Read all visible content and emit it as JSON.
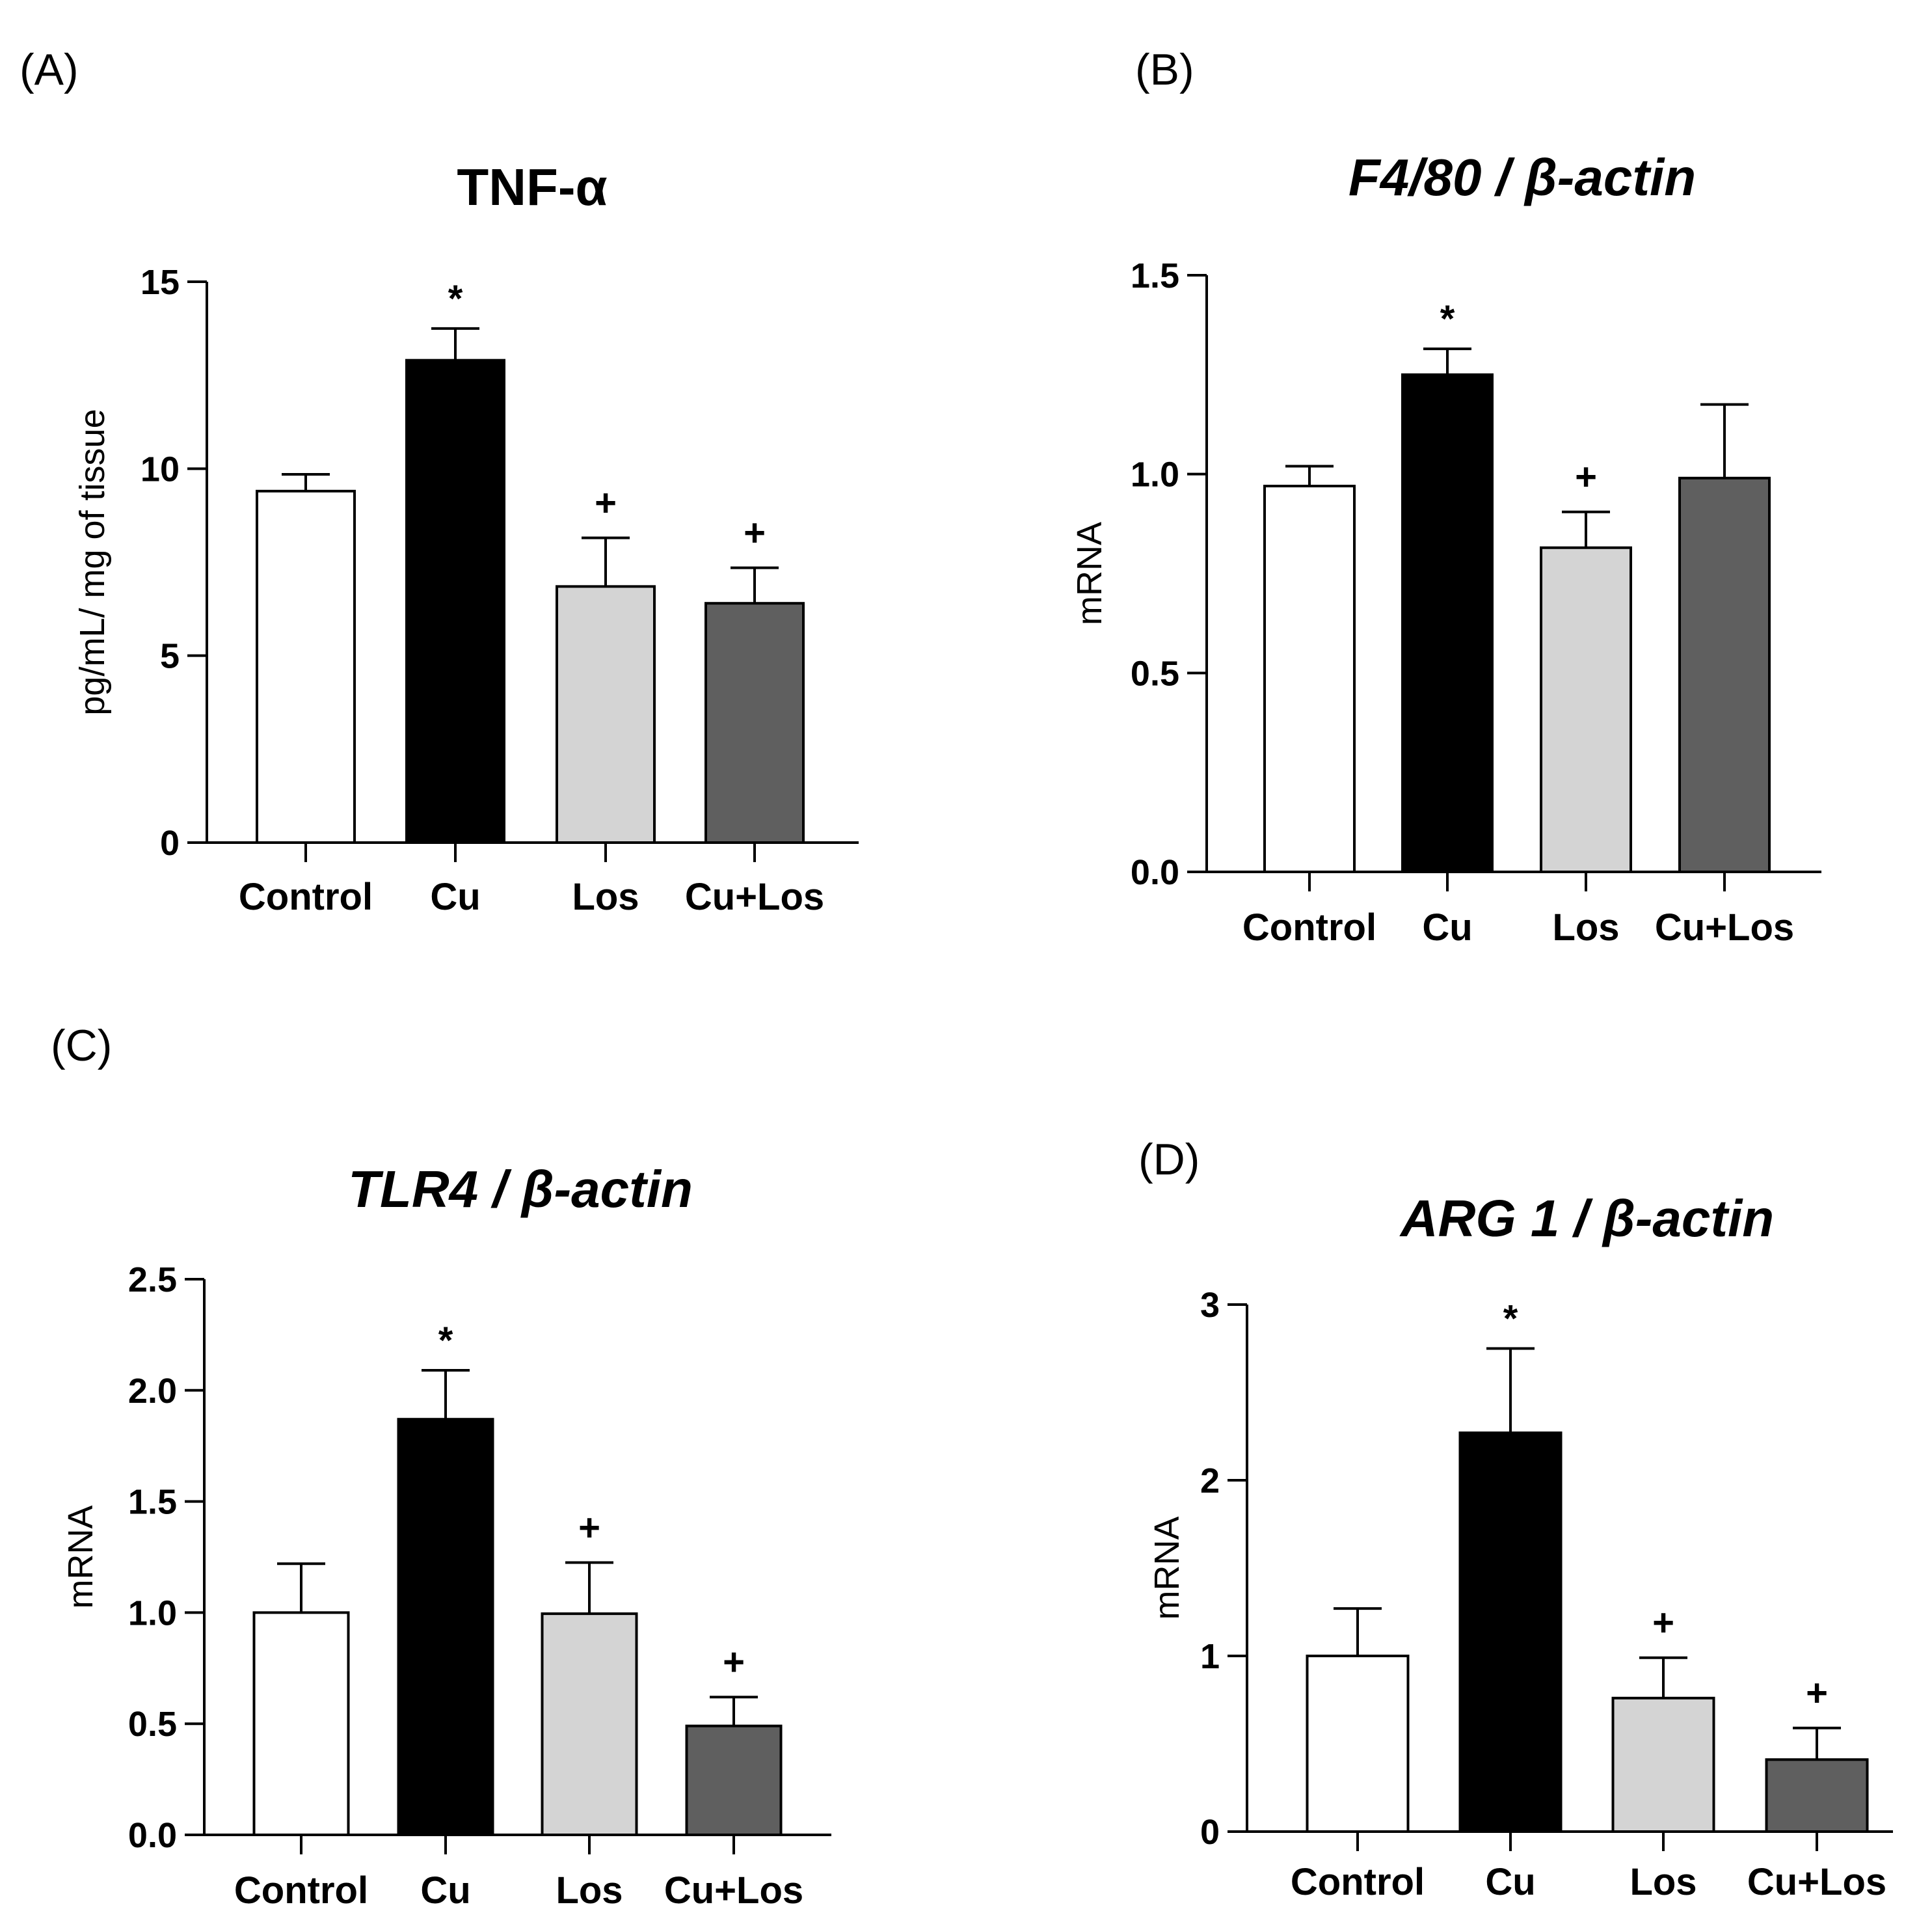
{
  "figure_labels": {
    "a": "(A)",
    "b": "(B)",
    "c": "(C)",
    "d": "(D)"
  },
  "colors": {
    "control": "#ffffff",
    "cu": "#000000",
    "los": "#d4d4d4",
    "culos": "#5f5f5f"
  },
  "chart_data": [
    {
      "id": "A",
      "type": "bar",
      "title": "TNF-α",
      "title_style": "bold",
      "ylabel": "pg/mL/ mg of tissue",
      "xlabel": "",
      "categories": [
        "Control",
        "Cu",
        "Los",
        "Cu+Los"
      ],
      "values": [
        9.4,
        12.9,
        6.85,
        6.4
      ],
      "errors": [
        0.45,
        0.85,
        1.3,
        0.95
      ],
      "annotations": [
        "",
        "*",
        "+",
        "+"
      ],
      "ylim": [
        0,
        15
      ],
      "yticks": [
        0,
        5,
        10,
        15
      ],
      "ytick_labels": [
        "0",
        "5",
        "10",
        "15"
      ]
    },
    {
      "id": "B",
      "type": "bar",
      "title": "F4/80 / β-actin",
      "title_style": "bold-italic",
      "ylabel": "mRNA",
      "xlabel": "",
      "categories": [
        "Control",
        "Cu",
        "Los",
        "Cu+Los"
      ],
      "values": [
        0.97,
        1.25,
        0.815,
        0.99
      ],
      "errors": [
        0.05,
        0.065,
        0.09,
        0.185
      ],
      "annotations": [
        "",
        "*",
        "+",
        ""
      ],
      "ylim": [
        0,
        1.5
      ],
      "yticks": [
        0,
        0.5,
        1.0,
        1.5
      ],
      "ytick_labels": [
        "0.0",
        "0.5",
        "1.0",
        "1.5"
      ]
    },
    {
      "id": "C",
      "type": "bar",
      "title": "TLR4 / β-actin",
      "title_style": "bold-italic",
      "ylabel": "mRNA",
      "xlabel": "",
      "categories": [
        "Control",
        "Cu",
        "Los",
        "Cu+Los"
      ],
      "values": [
        1.0,
        1.87,
        0.995,
        0.49
      ],
      "errors": [
        0.22,
        0.22,
        0.23,
        0.13
      ],
      "annotations": [
        "",
        "*",
        "+",
        "+"
      ],
      "ylim": [
        0,
        2.5
      ],
      "yticks": [
        0,
        0.5,
        1.0,
        1.5,
        2.0,
        2.5
      ],
      "ytick_labels": [
        "0.0",
        "0.5",
        "1.0",
        "1.5",
        "2.0",
        "2.5"
      ]
    },
    {
      "id": "D",
      "type": "bar",
      "title": "ARG 1 / β-actin",
      "title_style": "bold-italic",
      "ylabel": "mRNA",
      "xlabel": "",
      "categories": [
        "Control",
        "Cu",
        "Los",
        "Cu+Los"
      ],
      "values": [
        1.0,
        2.27,
        0.76,
        0.41
      ],
      "errors": [
        0.27,
        0.48,
        0.23,
        0.18
      ],
      "annotations": [
        "",
        "*",
        "+",
        "+"
      ],
      "ylim": [
        0,
        3
      ],
      "yticks": [
        0,
        1,
        2,
        3
      ],
      "ytick_labels": [
        "0",
        "1",
        "2",
        "3"
      ]
    }
  ]
}
